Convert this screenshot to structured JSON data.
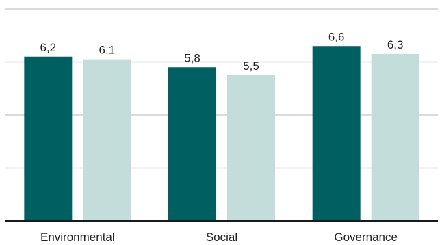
{
  "chart_data": {
    "type": "bar",
    "categories": [
      "Environmental",
      "Social",
      "Governance"
    ],
    "series": [
      {
        "values": [
          6.2,
          5.8,
          6.6
        ],
        "labels": [
          "6,2",
          "5,8",
          "6,6"
        ],
        "color": "#005f60"
      },
      {
        "values": [
          6.1,
          5.5,
          6.3
        ],
        "labels": [
          "6,1",
          "5,5",
          "6,3"
        ],
        "color": "#c2ddda"
      }
    ],
    "title": "",
    "xlabel": "",
    "ylabel": "",
    "ylim": [
      0,
      8
    ],
    "yticks": [
      0,
      2,
      4,
      6,
      8
    ],
    "tick_labels_visible": false,
    "grid": true,
    "legend": "none"
  }
}
